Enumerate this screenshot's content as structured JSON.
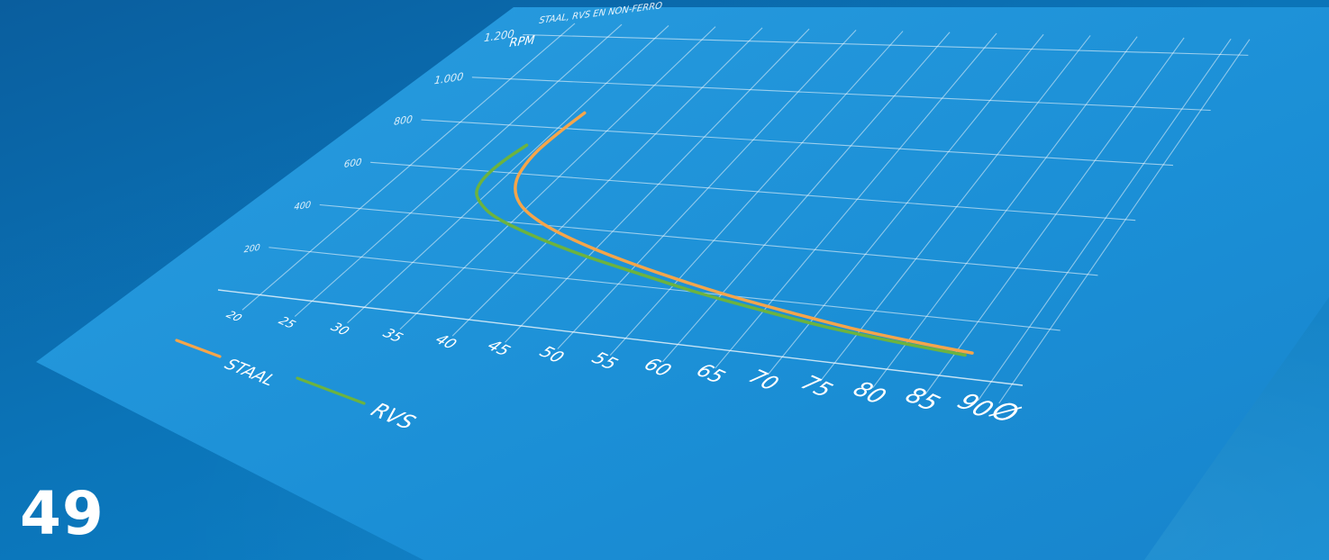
{
  "page": {
    "number": "49"
  },
  "chart_data": {
    "type": "line",
    "title": "STAAL, RVS EN NON-FERRO",
    "ylabel": "RPM",
    "xlabel": "Ø",
    "x_ticks": [
      20,
      25,
      30,
      35,
      40,
      45,
      50,
      55,
      60,
      65,
      70,
      75,
      80,
      85,
      90
    ],
    "y_ticks": [
      {
        "value": 200,
        "label": "200"
      },
      {
        "value": 400,
        "label": "400"
      },
      {
        "value": 600,
        "label": "600"
      },
      {
        "value": 800,
        "label": "800"
      },
      {
        "value": 1000,
        "label": "1.000"
      },
      {
        "value": 1200,
        "label": "1.200"
      }
    ],
    "xlim": [
      16,
      93
    ],
    "ylim": [
      0,
      1270
    ],
    "grid": true,
    "legend_position": "bottom-left",
    "series": [
      {
        "name": "STAAL",
        "color": "#f5a54a",
        "x": [
          31.0,
          30.6,
          30.4,
          30.8,
          31.6,
          33.0,
          35.0,
          38.0,
          42.0,
          47.0,
          53.0,
          60.0,
          67.0,
          74.0,
          81.0,
          86.5
        ],
        "y": [
          870,
          790,
          700,
          620,
          560,
          505,
          455,
          405,
          355,
          305,
          255,
          205,
          165,
          130,
          105,
          90
        ]
      },
      {
        "name": "RVS",
        "color": "#6cb33f",
        "x": [
          28.8,
          28.3,
          28.1,
          28.3,
          29.0,
          30.4,
          32.4,
          35.4,
          39.6,
          44.6,
          50.6,
          57.6,
          64.6,
          71.6,
          78.6,
          86.0
        ],
        "y": [
          720,
          660,
          600,
          550,
          505,
          465,
          425,
          385,
          340,
          295,
          250,
          200,
          160,
          125,
          100,
          80
        ]
      }
    ]
  }
}
